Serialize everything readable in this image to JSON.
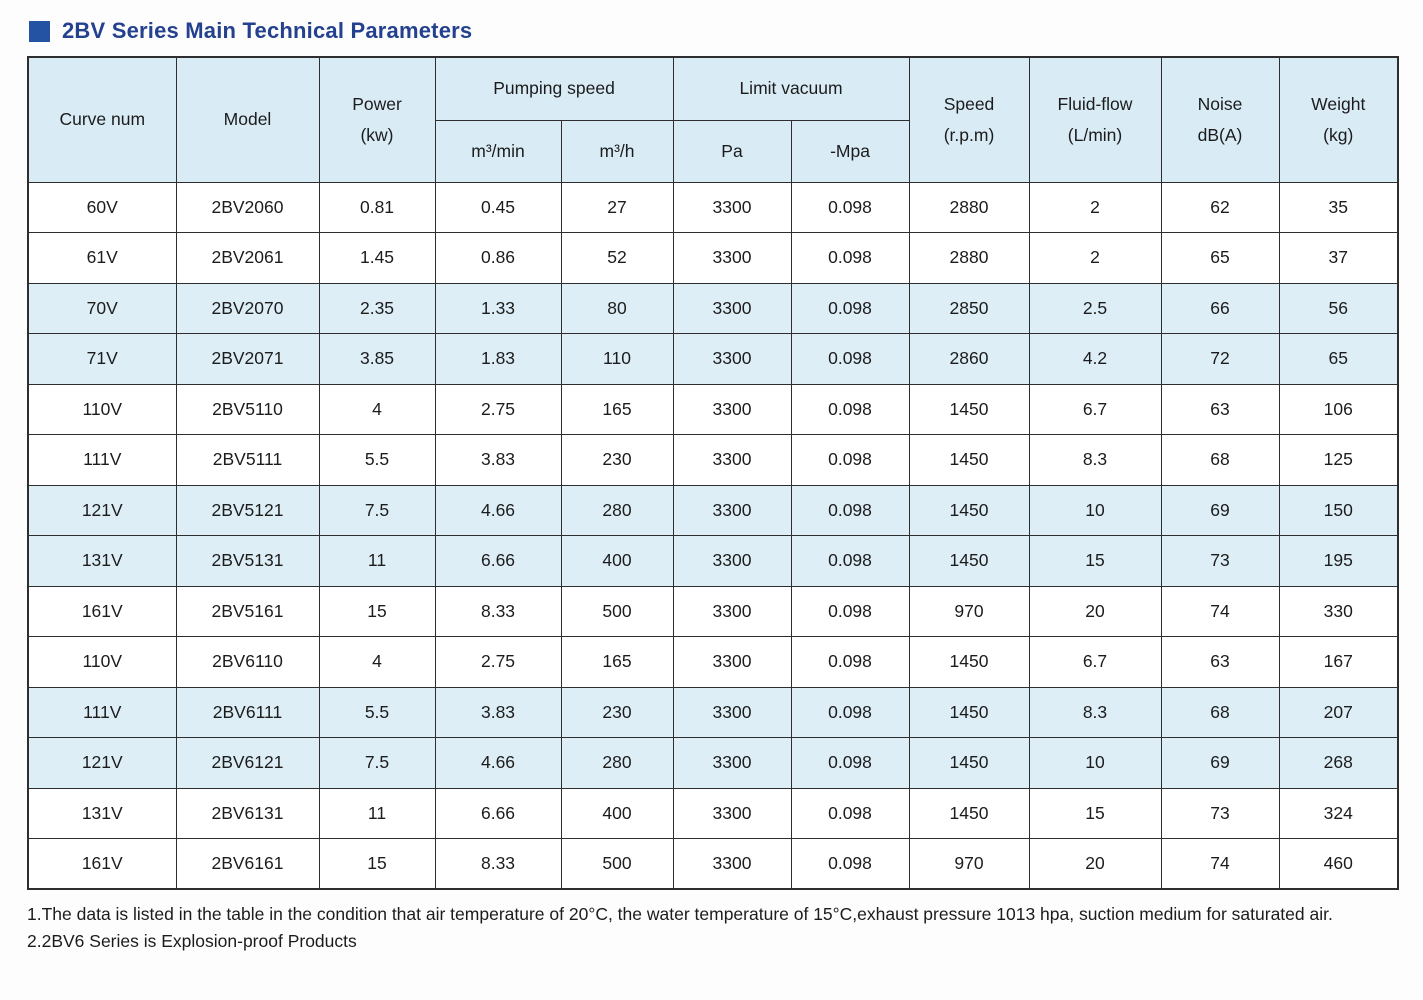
{
  "title": "2BV Series Main Technical Parameters",
  "table": {
    "header": {
      "curve": "Curve num",
      "model": "Model",
      "power_l1": "Power",
      "power_l2": "(kw)",
      "pumping": "Pumping speed",
      "pumping_sub1": "m³/min",
      "pumping_sub2": "m³/h",
      "vacuum": "Limit vacuum",
      "vacuum_sub1": "Pa",
      "vacuum_sub2": "-Mpa",
      "speed_l1": "Speed",
      "speed_l2": "(r.p.m)",
      "fluid_l1": "Fluid-flow",
      "fluid_l2": "(L/min)",
      "noise_l1": "Noise",
      "noise_l2": "dB(A)",
      "weight_l1": "Weight",
      "weight_l2": "(kg)"
    },
    "rows": [
      [
        "60V",
        "2BV2060",
        "0.81",
        "0.45",
        "27",
        "3300",
        "0.098",
        "2880",
        "2",
        "62",
        "35"
      ],
      [
        "61V",
        "2BV2061",
        "1.45",
        "0.86",
        "52",
        "3300",
        "0.098",
        "2880",
        "2",
        "65",
        "37"
      ],
      [
        "70V",
        "2BV2070",
        "2.35",
        "1.33",
        "80",
        "3300",
        "0.098",
        "2850",
        "2.5",
        "66",
        "56"
      ],
      [
        "71V",
        "2BV2071",
        "3.85",
        "1.83",
        "110",
        "3300",
        "0.098",
        "2860",
        "4.2",
        "72",
        "65"
      ],
      [
        "110V",
        "2BV5110",
        "4",
        "2.75",
        "165",
        "3300",
        "0.098",
        "1450",
        "6.7",
        "63",
        "106"
      ],
      [
        "111V",
        "2BV5111",
        "5.5",
        "3.83",
        "230",
        "3300",
        "0.098",
        "1450",
        "8.3",
        "68",
        "125"
      ],
      [
        "121V",
        "2BV5121",
        "7.5",
        "4.66",
        "280",
        "3300",
        "0.098",
        "1450",
        "10",
        "69",
        "150"
      ],
      [
        "131V",
        "2BV5131",
        "11",
        "6.66",
        "400",
        "3300",
        "0.098",
        "1450",
        "15",
        "73",
        "195"
      ],
      [
        "161V",
        "2BV5161",
        "15",
        "8.33",
        "500",
        "3300",
        "0.098",
        "970",
        "20",
        "74",
        "330"
      ],
      [
        "110V",
        "2BV6110",
        "4",
        "2.75",
        "165",
        "3300",
        "0.098",
        "1450",
        "6.7",
        "63",
        "167"
      ],
      [
        "111V",
        "2BV6111",
        "5.5",
        "3.83",
        "230",
        "3300",
        "0.098",
        "1450",
        "8.3",
        "68",
        "207"
      ],
      [
        "121V",
        "2BV6121",
        "7.5",
        "4.66",
        "280",
        "3300",
        "0.098",
        "1450",
        "10",
        "69",
        "268"
      ],
      [
        "131V",
        "2BV6131",
        "11",
        "6.66",
        "400",
        "3300",
        "0.098",
        "1450",
        "15",
        "73",
        "324"
      ],
      [
        "161V",
        "2BV6161",
        "15",
        "8.33",
        "500",
        "3300",
        "0.098",
        "970",
        "20",
        "74",
        "460"
      ]
    ]
  },
  "notes": [
    "1.The data is listed in the table in the condition that air temperature of 20°C, the water temperature of 15°C,exhaust pressure 1013 hpa, suction medium for saturated air.",
    "2.2BV6 Series is Explosion-proof Products"
  ]
}
